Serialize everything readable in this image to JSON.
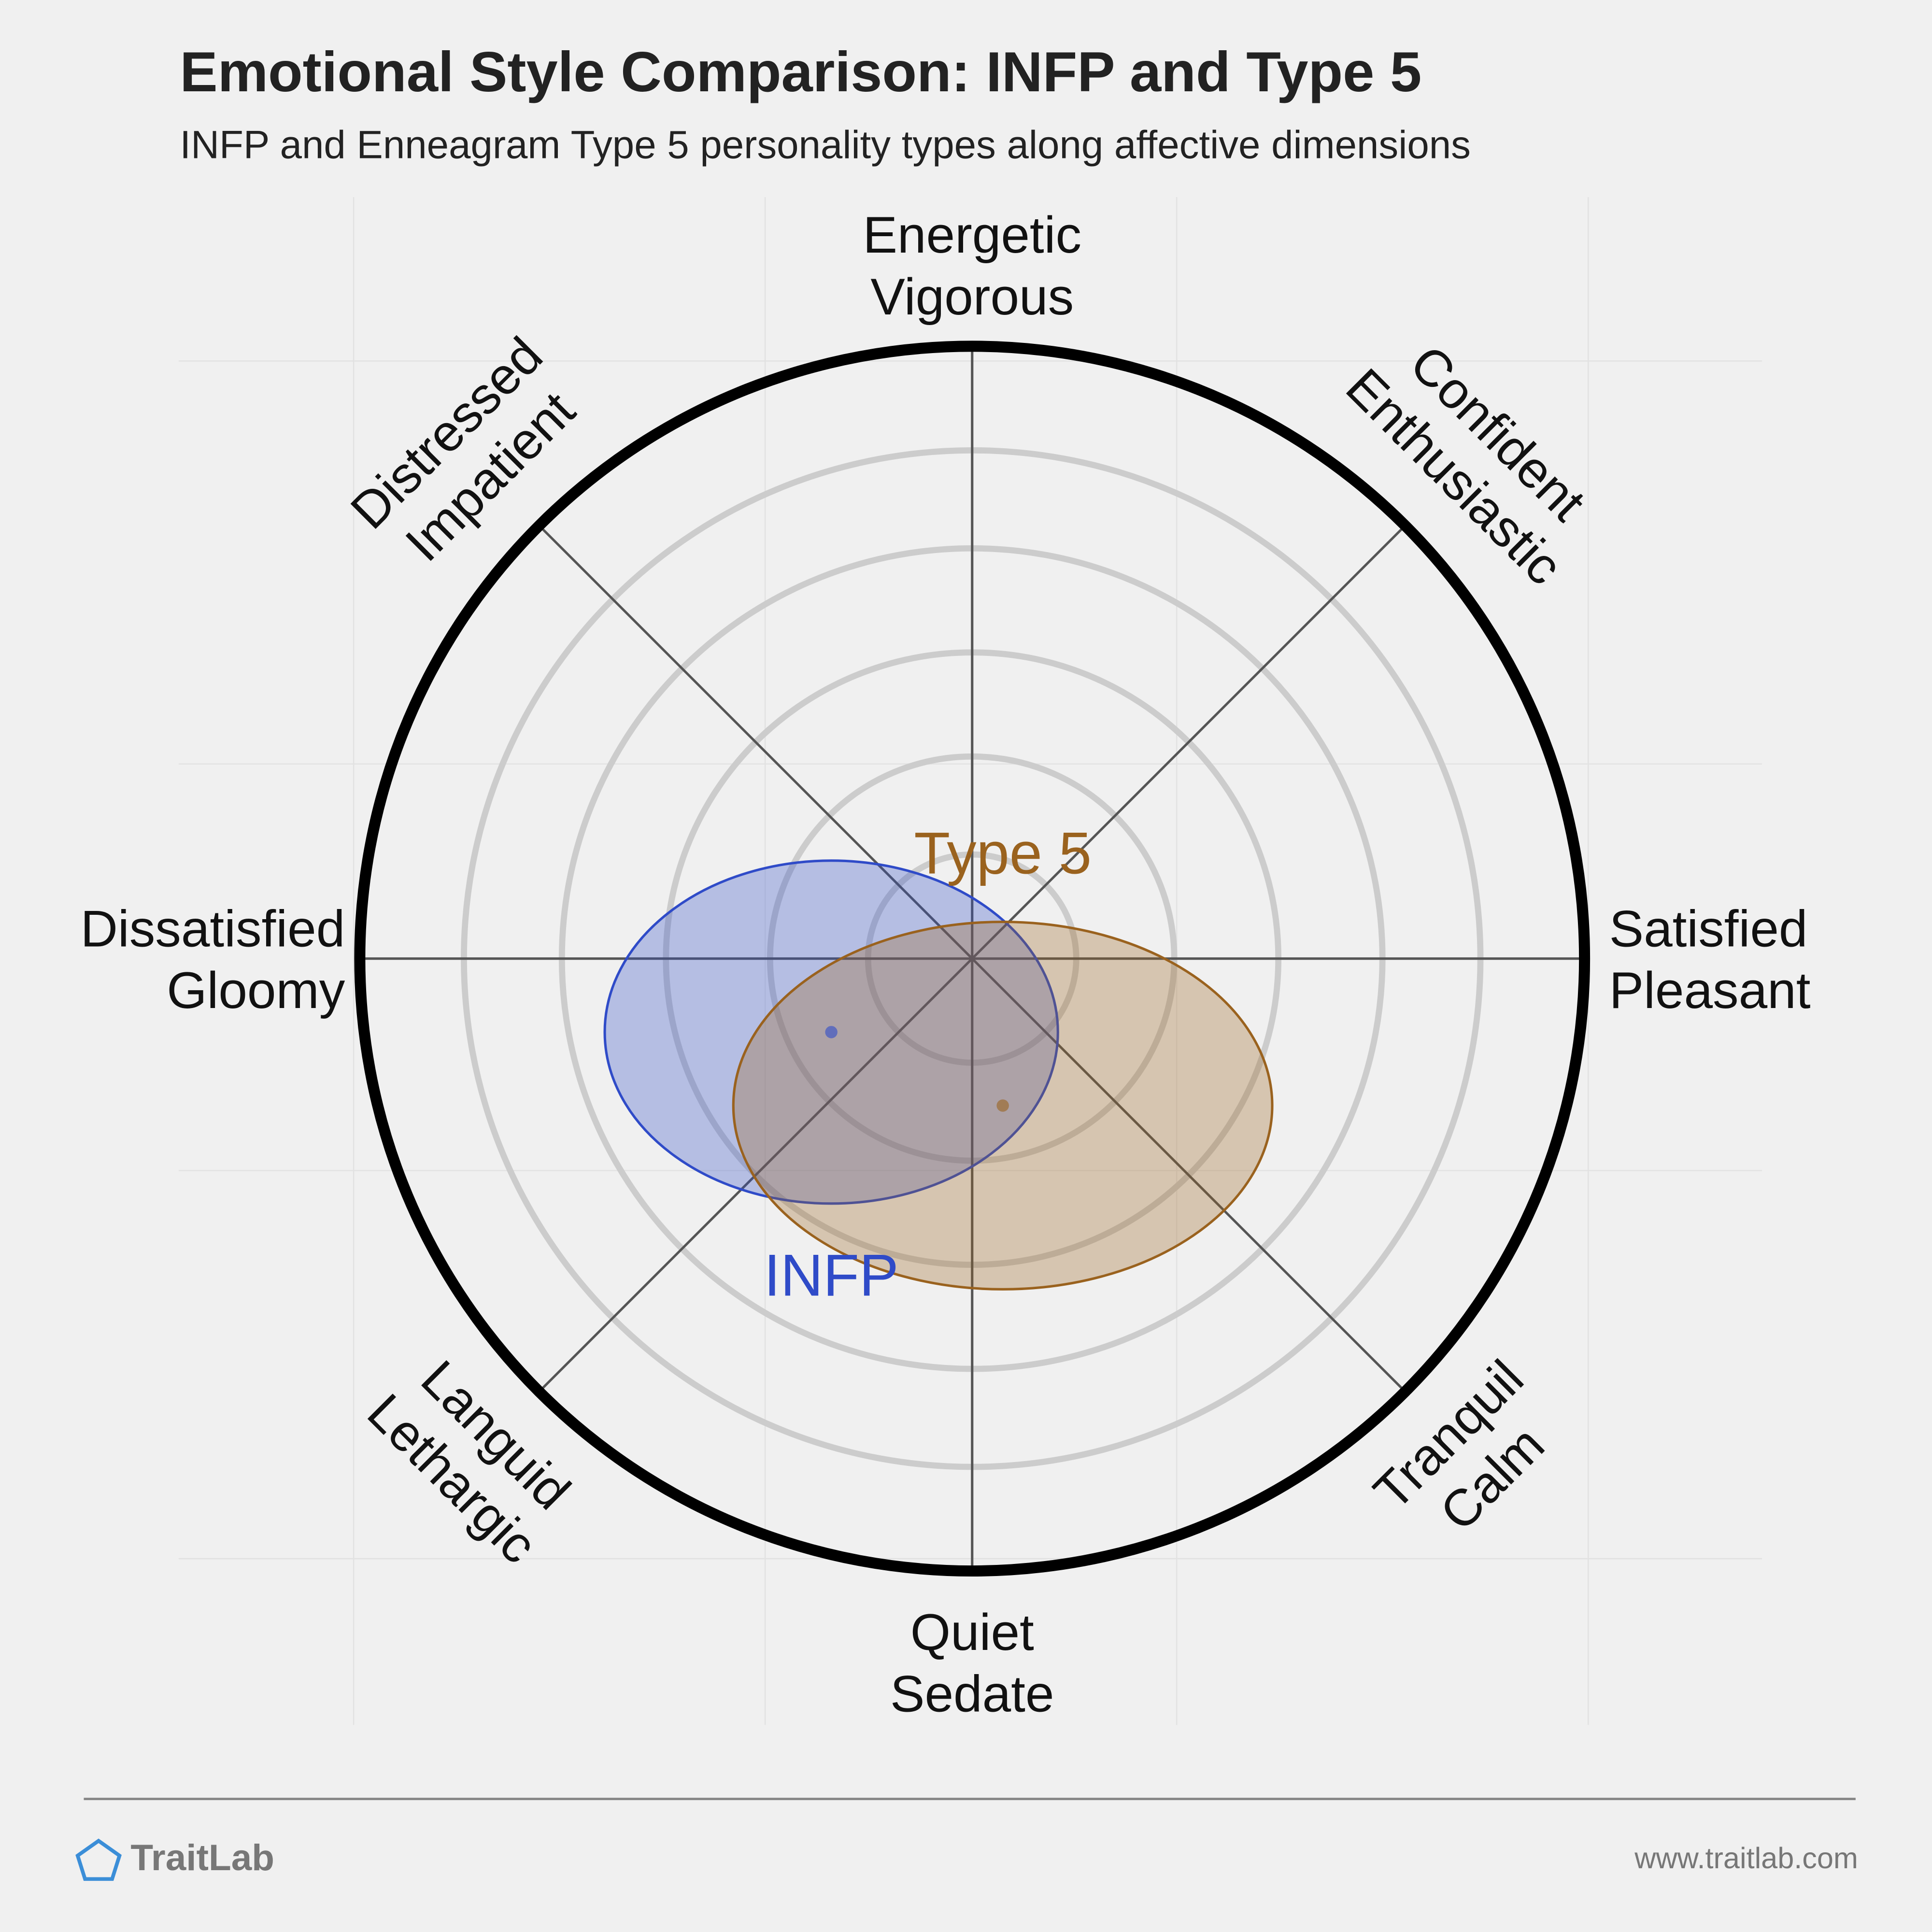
{
  "chart_data": {
    "type": "ellipse",
    "title": "Emotional Style Comparison: INFP and Type 5",
    "subtitle": "INFP and Enneagram Type 5 personality types along affective dimensions",
    "axis_labels": [
      [
        "Energetic",
        "Vigorous"
      ],
      [
        "Confident",
        "Enthusiastic"
      ],
      [
        "Satisfied",
        "Pleasant"
      ],
      [
        "Tranquil",
        "Calm"
      ],
      [
        "Quiet",
        "Sedate"
      ],
      [
        "Languid",
        "Lethargic"
      ],
      [
        "Dissatisfied",
        "Gloomy"
      ],
      [
        "Distressed",
        "Impatient"
      ]
    ],
    "xlim": [
      -1,
      1
    ],
    "ylim": [
      -1,
      1
    ],
    "rticks": [
      0.17,
      0.33,
      0.5,
      0.67,
      0.83
    ],
    "series": [
      {
        "name": "INFP",
        "color": "#2f4bc8",
        "x": -0.23,
        "y": -0.12,
        "rx": 0.37,
        "ry": 0.28
      },
      {
        "name": "Type 5",
        "color": "#9a621e",
        "x": 0.05,
        "y": -0.24,
        "rx": 0.44,
        "ry": 0.3
      }
    ],
    "brand": "TraitLab",
    "url": "www.traitlab.com"
  }
}
